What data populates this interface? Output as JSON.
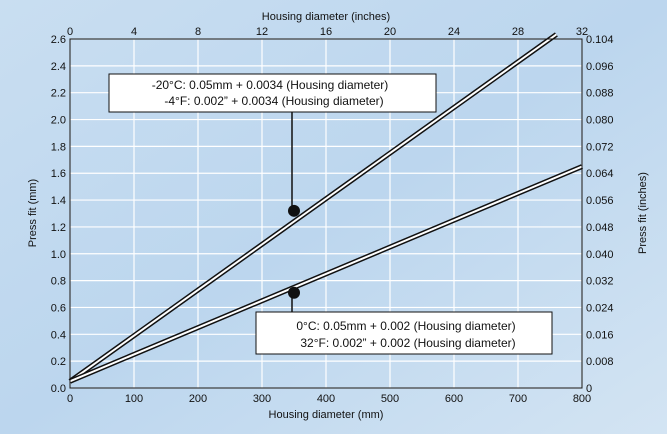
{
  "chart_data": {
    "type": "line",
    "bottom_axis": {
      "label": "Housing diameter (mm)",
      "range": [
        0,
        800
      ],
      "ticks": [
        0,
        100,
        200,
        300,
        400,
        500,
        600,
        700,
        800
      ]
    },
    "top_axis": {
      "label": "Housing diameter (inches)",
      "range": [
        0,
        32
      ],
      "ticks": [
        0,
        4,
        8,
        12,
        16,
        20,
        24,
        28,
        32
      ]
    },
    "left_axis": {
      "label": "Press fit (mm)",
      "range": [
        0,
        2.6
      ],
      "ticks": [
        "0.0",
        "0.2",
        "0.4",
        "0.6",
        "0.8",
        "1.0",
        "1.2",
        "1.4",
        "1.6",
        "1.8",
        "2.0",
        "2.2",
        "2.4",
        "2.6"
      ]
    },
    "right_axis": {
      "label": "Press fit (inches)",
      "range": [
        0,
        0.104
      ],
      "ticks": [
        "0",
        "0.008",
        "0.016",
        "0.024",
        "0.032",
        "0.040",
        "0.048",
        "0.056",
        "0.064",
        "0.072",
        "0.080",
        "0.088",
        "0.096",
        "0.104"
      ]
    },
    "grid": true,
    "series": [
      {
        "x": [
          0,
          760
        ],
        "y": [
          0.05,
          2.634
        ]
      },
      {
        "x": [
          0,
          800
        ],
        "y": [
          0.05,
          1.65
        ]
      }
    ],
    "annotations": [
      {
        "lines": [
          "-20°C: 0.05mm + 0.0034 (Housing diameter)",
          "-4°F: 0.002” + 0.0034 (Housing diameter)"
        ],
        "marker": {
          "x": 350,
          "y": 1.32
        }
      },
      {
        "lines": [
          "0°C: 0.05mm + 0.002 (Housing diameter)",
          "32°F: 0.002” + 0.002 (Housing diameter)"
        ],
        "marker": {
          "x": 350,
          "y": 0.71
        }
      }
    ],
    "colors": {
      "line": "#111111",
      "grid": "#ffffff",
      "background": "#c7dcef"
    }
  }
}
